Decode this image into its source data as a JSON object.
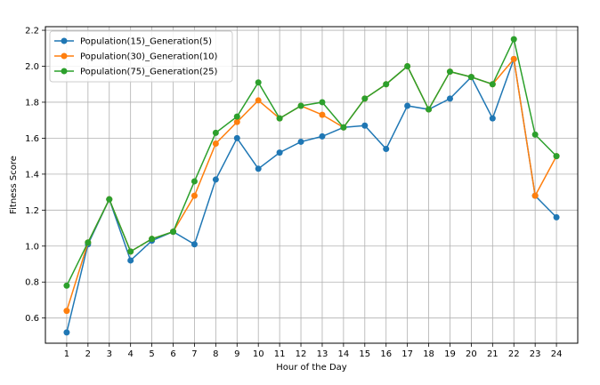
{
  "chart_data": {
    "type": "line",
    "xlabel": "Hour of the Day",
    "ylabel": "Fitness Score",
    "x": [
      1,
      2,
      3,
      4,
      5,
      6,
      7,
      8,
      9,
      10,
      11,
      12,
      13,
      14,
      15,
      16,
      17,
      18,
      19,
      20,
      21,
      22,
      23,
      24
    ],
    "xlim": [
      0.0,
      25.0
    ],
    "ylim": [
      0.46,
      2.22
    ],
    "yticks": [
      0.6,
      0.8,
      1.0,
      1.2,
      1.4,
      1.6,
      1.8,
      2.0,
      2.2
    ],
    "ytick_labels": [
      "0.6",
      "0.8",
      "1.0",
      "1.2",
      "1.4",
      "1.6",
      "1.8",
      "2.0",
      "2.2"
    ],
    "xtick_labels": [
      "1",
      "2",
      "3",
      "4",
      "5",
      "6",
      "7",
      "8",
      "9",
      "10",
      "11",
      "12",
      "13",
      "14",
      "15",
      "16",
      "17",
      "18",
      "19",
      "20",
      "21",
      "22",
      "23",
      "24"
    ],
    "grid": true,
    "legend_position": "top-left",
    "series": [
      {
        "name": "Population(15)_Generation(5)",
        "color": "#1f77b4",
        "values": [
          0.52,
          1.01,
          1.26,
          0.92,
          1.03,
          1.08,
          1.01,
          1.37,
          1.6,
          1.43,
          1.52,
          1.58,
          1.61,
          1.66,
          1.67,
          1.54,
          1.78,
          1.76,
          1.82,
          1.94,
          1.71,
          2.04,
          1.28,
          1.16
        ]
      },
      {
        "name": "Population(30)_Generation(10)",
        "color": "#ff7f0e",
        "values": [
          0.64,
          1.02,
          1.26,
          0.97,
          1.04,
          1.08,
          1.28,
          1.57,
          1.69,
          1.81,
          1.71,
          1.78,
          1.73,
          1.66,
          1.82,
          1.9,
          2.0,
          1.76,
          1.97,
          1.94,
          1.9,
          2.04,
          1.28,
          1.5
        ]
      },
      {
        "name": "Population(75)_Generation(25)",
        "color": "#2ca02c",
        "values": [
          0.78,
          1.02,
          1.26,
          0.97,
          1.04,
          1.08,
          1.36,
          1.63,
          1.72,
          1.91,
          1.71,
          1.78,
          1.8,
          1.66,
          1.82,
          1.9,
          2.0,
          1.76,
          1.97,
          1.94,
          1.9,
          2.15,
          1.62,
          1.5
        ]
      }
    ]
  }
}
